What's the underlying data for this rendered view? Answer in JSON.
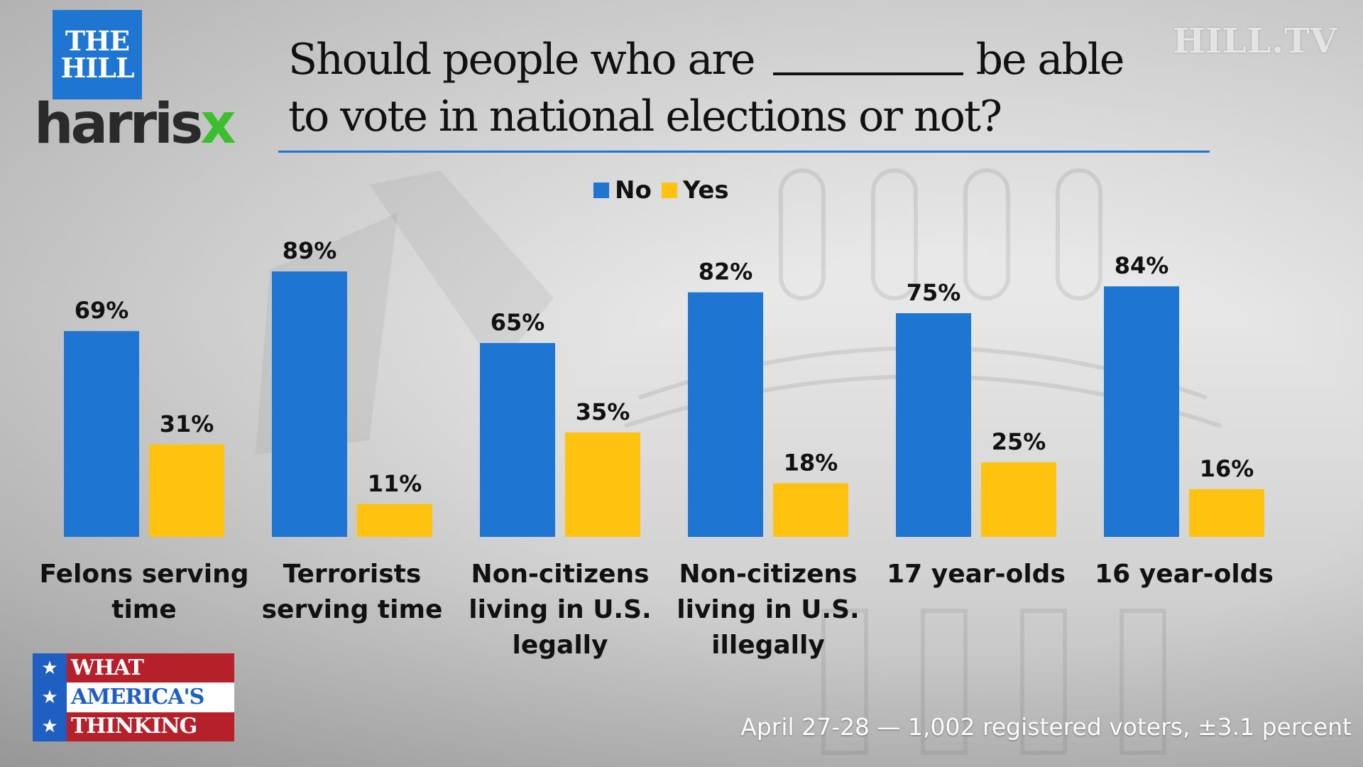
{
  "brand": {
    "thehill_line1": "THE",
    "thehill_line2": "HILL",
    "harrisx_main": "harris",
    "harrisx_x": "x",
    "hilltv": "HILL.TV",
    "wat_line1": "WHAT",
    "wat_line2": "AMERICA'S",
    "wat_line3": "THINKING",
    "wat_star": "★",
    "blue": "#1f76d2",
    "green": "#3cbf2f",
    "red": "#b5202a"
  },
  "title": {
    "line1_before": "Should people who are",
    "line1_after": "be able",
    "line2": "to vote in national elections or not?"
  },
  "footnote": "April 27-28 — 1,002 registered voters, ±3.1 percent",
  "chart_data": {
    "type": "bar",
    "categories": [
      [
        "Felons serving",
        "time"
      ],
      [
        "Terrorists",
        "serving time"
      ],
      [
        "Non-citizens",
        "living in U.S.",
        "legally"
      ],
      [
        "Non-citizens",
        "living in U.S.",
        "illegally"
      ],
      [
        "17 year-olds"
      ],
      [
        "16 year-olds"
      ]
    ],
    "series": [
      {
        "name": "No",
        "color": "#1f76d2",
        "values": [
          69,
          89,
          65,
          82,
          75,
          84
        ],
        "labels": [
          "69%",
          "89%",
          "65%",
          "82%",
          "75%",
          "84%"
        ]
      },
      {
        "name": "Yes",
        "color": "#ffc20e",
        "values": [
          31,
          11,
          35,
          18,
          25,
          16
        ],
        "labels": [
          "31%",
          "11%",
          "35%",
          "18%",
          "25%",
          "16%"
        ]
      }
    ],
    "ylim": [
      0,
      100
    ],
    "legend": "top-center",
    "grid": false
  }
}
